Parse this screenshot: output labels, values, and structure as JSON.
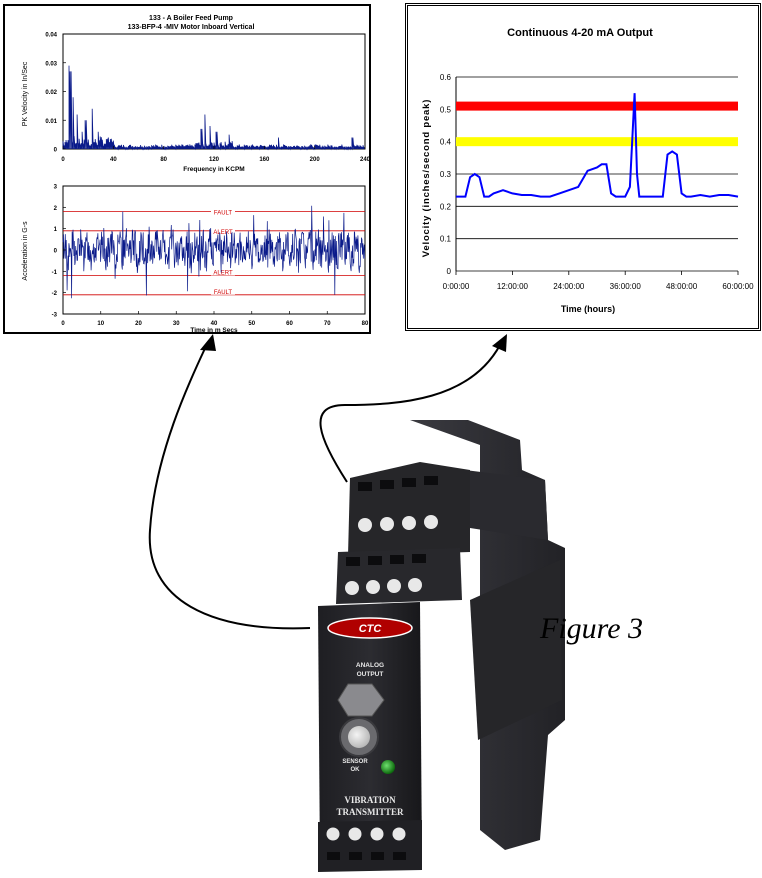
{
  "caption": "Figure 3",
  "spectrum_chart": {
    "title_line1": "133 - A Boiler Feed Pump",
    "title_line2": "133-BFP-4 -MIV Motor Inboard Vertical",
    "ylabel": "PK Velocity in In/Sec",
    "xlabel": "Frequency in KCPM",
    "y_ticks": [
      "0",
      "0.01",
      "0.02",
      "0.03",
      "0.04"
    ],
    "x_ticks": [
      "0",
      "40",
      "80",
      "120",
      "160",
      "200",
      "240"
    ]
  },
  "waveform_chart": {
    "ylabel": "Acceleration in G-s",
    "xlabel": "Time in m Secs",
    "y_ticks": [
      "3",
      "2",
      "1",
      "0",
      "-1",
      "-2",
      "-3"
    ],
    "x_ticks": [
      "0",
      "10",
      "20",
      "30",
      "40",
      "50",
      "60",
      "70",
      "80"
    ],
    "fault_label": "FAULT",
    "alert_label": "ALERT"
  },
  "output_chart": {
    "title": "Continuous 4-20 mA Output",
    "ylabel": "Velocity (inches/second peak)",
    "xlabel": "Time (hours)",
    "y_ticks": [
      "0",
      "0.1",
      "0.2",
      "0.3",
      "0.4",
      "0.5",
      "0.6"
    ],
    "x_ticks": [
      "0:00:00",
      "12:00:00",
      "24:00:00",
      "36:00:00",
      "48:00:00",
      "60:00:00"
    ]
  },
  "device": {
    "brand": "CTC",
    "analog_label_1": "ANALOG",
    "analog_label_2": "OUTPUT",
    "sensor_label_1": "SENSOR",
    "sensor_label_2": "OK",
    "name_line_1": "VIBRATION",
    "name_line_2": "TRANSMITTER"
  },
  "chart_data": [
    {
      "type": "line",
      "title": "Continuous 4-20 mA Output",
      "xlabel": "Time (hours)",
      "ylabel": "Velocity (inches/second peak)",
      "ylim": [
        0,
        0.6
      ],
      "xlim": [
        0,
        60
      ],
      "grid": true,
      "x": [
        0,
        1,
        2,
        3,
        4,
        5,
        6,
        7,
        8,
        10,
        12,
        14,
        16,
        18,
        20,
        22,
        24,
        26,
        28,
        30,
        31,
        32,
        33,
        34,
        36,
        37,
        38,
        38.5,
        39,
        40,
        42,
        44,
        45,
        46,
        47,
        48,
        49,
        50,
        52,
        54,
        56,
        58,
        60
      ],
      "series": [
        {
          "values": [
            0.23,
            0.23,
            0.23,
            0.29,
            0.3,
            0.29,
            0.23,
            0.23,
            0.24,
            0.25,
            0.24,
            0.235,
            0.235,
            0.23,
            0.23,
            0.24,
            0.25,
            0.26,
            0.31,
            0.32,
            0.33,
            0.33,
            0.24,
            0.23,
            0.23,
            0.26,
            0.55,
            0.3,
            0.23,
            0.23,
            0.23,
            0.23,
            0.36,
            0.37,
            0.36,
            0.24,
            0.23,
            0.23,
            0.235,
            0.23,
            0.235,
            0.235,
            0.23
          ]
        }
      ],
      "reference_lines": [
        {
          "value": 0.51,
          "color": "#ff0000"
        },
        {
          "value": 0.4,
          "color": "#ffff00"
        }
      ],
      "line_color": "#0000ff"
    },
    {
      "type": "line",
      "title": "133 - A Boiler Feed Pump",
      "xlabel": "Frequency in KCPM",
      "ylabel": "PK Velocity in In/Sec",
      "ylim": [
        0,
        0.04
      ],
      "xlim": [
        0,
        240
      ],
      "peaks": [
        {
          "x": 5,
          "y": 0.029
        },
        {
          "x": 6,
          "y": 0.027
        },
        {
          "x": 8,
          "y": 0.018
        },
        {
          "x": 11,
          "y": 0.012
        },
        {
          "x": 15,
          "y": 0.006
        },
        {
          "x": 18,
          "y": 0.01
        },
        {
          "x": 23,
          "y": 0.014
        },
        {
          "x": 28,
          "y": 0.006
        },
        {
          "x": 36,
          "y": 0.004
        },
        {
          "x": 110,
          "y": 0.007
        },
        {
          "x": 113,
          "y": 0.012
        },
        {
          "x": 117,
          "y": 0.008
        },
        {
          "x": 122,
          "y": 0.006
        },
        {
          "x": 132,
          "y": 0.005
        },
        {
          "x": 171,
          "y": 0.004
        },
        {
          "x": 230,
          "y": 0.004
        }
      ]
    },
    {
      "type": "line",
      "title": "",
      "xlabel": "Time in m Secs",
      "ylabel": "Acceleration in G-s",
      "ylim": [
        -3,
        3
      ],
      "xlim": [
        0,
        80
      ],
      "thresholds": [
        {
          "label": "FAULT",
          "value": 1.8
        },
        {
          "label": "ALERT",
          "value": 0.9
        },
        {
          "label": "ALERT",
          "value": -1.2
        },
        {
          "label": "FAULT",
          "value": -2.1
        }
      ],
      "amplitude_range": [
        -2.5,
        2.3
      ]
    }
  ]
}
